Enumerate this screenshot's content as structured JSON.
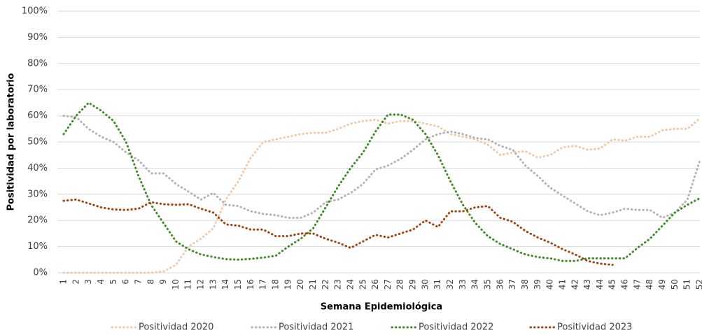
{
  "chart_data": {
    "type": "line",
    "y_label": "Positividad por laboratorio",
    "x_label": "Semana Epidemiológica",
    "categories": [
      "1",
      "2",
      "3",
      "4",
      "5",
      "6",
      "7",
      "8",
      "9",
      "10",
      "11",
      "12",
      "13",
      "14",
      "15",
      "16",
      "17",
      "18",
      "19",
      "20",
      "21",
      "22",
      "23",
      "24",
      "25",
      "26",
      "27",
      "28",
      "29",
      "30",
      "31",
      "32",
      "33",
      "34",
      "35",
      "36",
      "37",
      "38",
      "39",
      "40",
      "41",
      "42",
      "43",
      "44",
      "45",
      "46",
      "47",
      "48",
      "49",
      "50",
      "51",
      "52"
    ],
    "ylim": [
      0,
      100
    ],
    "yticks": [
      {
        "value": 0,
        "label": "0%"
      },
      {
        "value": 10,
        "label": "10%"
      },
      {
        "value": 20,
        "label": "20%"
      },
      {
        "value": 30,
        "label": "30%"
      },
      {
        "value": 40,
        "label": "40%"
      },
      {
        "value": 50,
        "label": "50%"
      },
      {
        "value": 60,
        "label": "60%"
      },
      {
        "value": 70,
        "label": "70%"
      },
      {
        "value": 80,
        "label": "80%"
      },
      {
        "value": 90,
        "label": "90%"
      },
      {
        "value": 100,
        "label": "100%"
      }
    ],
    "grid": true,
    "legend": "bottom",
    "series": [
      {
        "name": "Positividad 2020",
        "color": "#f2c9a8",
        "values": [
          0,
          0,
          0,
          0,
          0,
          0,
          0,
          0,
          0.5,
          3,
          10,
          13,
          17,
          28,
          35,
          44,
          50,
          51,
          52,
          53,
          53.5,
          53.5,
          55,
          57,
          58,
          58.5,
          57,
          58,
          58,
          57,
          56,
          53,
          52,
          51,
          49,
          45,
          46,
          46.5,
          44,
          45,
          48,
          48.5,
          47,
          47.5,
          51,
          50.5,
          52,
          52,
          54.5,
          55,
          55,
          59
        ]
      },
      {
        "name": "Positividad 2021",
        "color": "#b3b3b3",
        "values": [
          60,
          59.5,
          55,
          52,
          50,
          46,
          43,
          38,
          38,
          34,
          31,
          28,
          30.5,
          26,
          25.5,
          23.5,
          22.5,
          22,
          21,
          21,
          23,
          27,
          28,
          30.5,
          34,
          39.5,
          41,
          43.5,
          47,
          51,
          53,
          54,
          53,
          51.5,
          51,
          48.5,
          47,
          41,
          37,
          32.5,
          29.5,
          26.5,
          23.5,
          22,
          23,
          24.5,
          24,
          24,
          21,
          23,
          28,
          43
        ]
      },
      {
        "name": "Positividad 2022",
        "color": "#3f8a2a",
        "values": [
          53,
          60,
          65,
          62,
          58,
          50,
          37,
          26,
          19,
          12,
          9,
          7,
          6,
          5.2,
          5,
          5.3,
          5.8,
          6.5,
          10,
          13,
          17,
          25,
          33,
          40,
          46,
          54,
          60.5,
          60.5,
          58.5,
          53,
          45,
          35,
          26,
          19,
          14,
          11,
          9,
          7,
          6,
          5.5,
          4.5,
          4.5,
          5.5,
          5.5,
          5.5,
          5.5,
          9.5,
          13,
          18,
          23,
          26,
          28.5
        ]
      },
      {
        "name": "Positividad 2023",
        "color": "#a24412",
        "values": [
          27.5,
          28,
          26.5,
          25,
          24.2,
          24,
          24.5,
          27,
          26.2,
          26,
          26.2,
          24.5,
          23,
          18.5,
          18,
          16.5,
          16.5,
          14,
          14,
          15,
          15,
          13,
          11.5,
          9.5,
          12,
          14.5,
          13.5,
          15,
          16.5,
          20,
          17.5,
          23.5,
          23.5,
          25,
          25.5,
          21,
          19.5,
          16,
          13.5,
          11.5,
          9,
          7,
          4.5,
          3.5,
          3,
          null,
          null,
          null,
          null,
          null,
          null,
          null
        ]
      }
    ]
  }
}
